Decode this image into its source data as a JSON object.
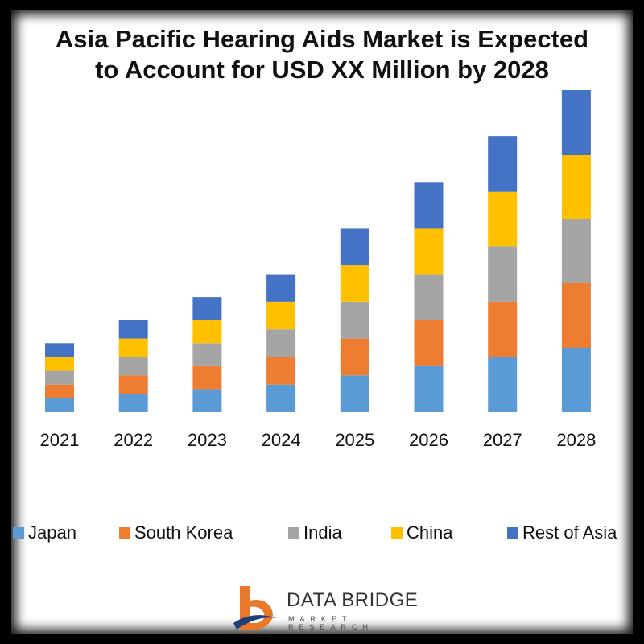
{
  "title": {
    "line1": "Asia Pacific Hearing Aids Market is Expected",
    "line2": "to Account for USD XX Million by 2028"
  },
  "chart_data": {
    "type": "bar",
    "stacked": true,
    "categories": [
      "2021",
      "2022",
      "2023",
      "2024",
      "2025",
      "2026",
      "2027",
      "2028"
    ],
    "series": [
      {
        "name": "Japan",
        "color": "#5b9bd5",
        "values": [
          1.5,
          2.0,
          2.5,
          3.0,
          4.0,
          5.0,
          6.0,
          7.0
        ]
      },
      {
        "name": "South Korea",
        "color": "#ed7d31",
        "values": [
          1.5,
          2.0,
          2.5,
          3.0,
          4.0,
          5.0,
          6.0,
          7.0
        ]
      },
      {
        "name": "India",
        "color": "#a5a5a5",
        "values": [
          1.5,
          2.0,
          2.5,
          3.0,
          4.0,
          5.0,
          6.0,
          7.0
        ]
      },
      {
        "name": "China",
        "color": "#ffc000",
        "values": [
          1.5,
          2.0,
          2.5,
          3.0,
          4.0,
          5.0,
          6.0,
          7.0
        ]
      },
      {
        "name": "Rest of Asia",
        "color": "#4472c4",
        "values": [
          1.5,
          2.0,
          2.5,
          3.0,
          4.0,
          5.0,
          6.0,
          7.0
        ]
      }
    ],
    "ylim": [
      0,
      35
    ],
    "grid": false,
    "legend_position": "bottom"
  },
  "logo": {
    "name": "DATA BRIDGE",
    "tagline": "MARKET RESEARCH"
  }
}
